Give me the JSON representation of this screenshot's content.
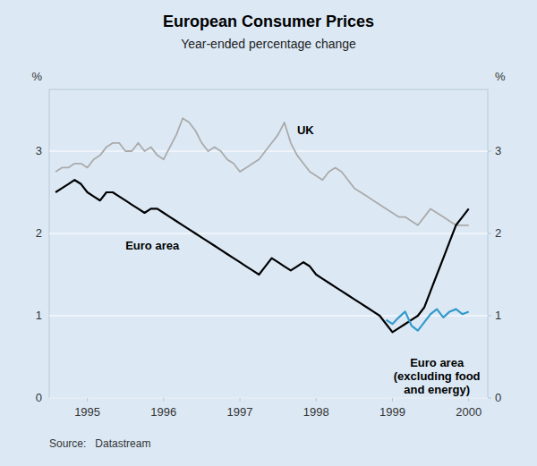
{
  "chart_data": {
    "type": "line",
    "title": "European Consumer Prices",
    "subtitle": "Year-ended percentage change",
    "y_label": "%",
    "y2_label": "%",
    "source": "Source:   Datastream",
    "xlim": [
      1994.5,
      2000.25
    ],
    "xticks": [
      1995,
      1996,
      1997,
      1998,
      1999,
      2000
    ],
    "ylim": [
      0,
      3.75
    ],
    "yticks": [
      0,
      1,
      2,
      3
    ],
    "y2lim": [
      0,
      3.75
    ],
    "y2ticks": [
      0,
      1,
      2,
      3
    ],
    "grid": true,
    "series": [
      {
        "name": "UK",
        "color": "#aaaaaa",
        "x": [
          1994.583,
          1994.667,
          1994.75,
          1994.833,
          1994.917,
          1995.0,
          1995.083,
          1995.167,
          1995.25,
          1995.333,
          1995.417,
          1995.5,
          1995.583,
          1995.667,
          1995.75,
          1995.833,
          1995.917,
          1996.0,
          1996.083,
          1996.167,
          1996.25,
          1996.333,
          1996.417,
          1996.5,
          1996.583,
          1996.667,
          1996.75,
          1996.833,
          1996.917,
          1997.0,
          1997.083,
          1997.167,
          1997.25,
          1997.333,
          1997.417,
          1997.5,
          1997.583,
          1997.667,
          1997.75,
          1997.833,
          1997.917,
          1998.0,
          1998.083,
          1998.167,
          1998.25,
          1998.333,
          1998.417,
          1998.5,
          1998.583,
          1998.667,
          1998.75,
          1998.833,
          1998.917,
          1999.0,
          1999.083,
          1999.167,
          1999.25,
          1999.333,
          1999.417,
          1999.5,
          1999.583,
          1999.667,
          1999.75,
          1999.833,
          1999.917,
          2000.0
        ],
        "values": [
          2.75,
          2.8,
          2.8,
          2.85,
          2.85,
          2.8,
          2.9,
          2.95,
          3.05,
          3.1,
          3.1,
          3.0,
          3.0,
          3.1,
          3.0,
          3.05,
          2.95,
          2.9,
          3.05,
          3.2,
          3.4,
          3.35,
          3.25,
          3.1,
          3.0,
          3.05,
          3.0,
          2.9,
          2.85,
          2.75,
          2.8,
          2.85,
          2.9,
          3.0,
          3.1,
          3.2,
          3.35,
          3.1,
          2.95,
          2.85,
          2.75,
          2.7,
          2.65,
          2.75,
          2.8,
          2.75,
          2.65,
          2.55,
          2.5,
          2.45,
          2.4,
          2.35,
          2.3,
          2.25,
          2.2,
          2.2,
          2.15,
          2.1,
          2.2,
          2.3,
          2.25,
          2.2,
          2.15,
          2.1,
          2.1,
          2.1
        ]
      },
      {
        "name": "Euro area",
        "color": "#000000",
        "x": [
          1994.583,
          1994.667,
          1994.75,
          1994.833,
          1994.917,
          1995.0,
          1995.083,
          1995.167,
          1995.25,
          1995.333,
          1995.417,
          1995.5,
          1995.583,
          1995.667,
          1995.75,
          1995.833,
          1995.917,
          1996.0,
          1996.083,
          1996.167,
          1996.25,
          1996.333,
          1996.417,
          1996.5,
          1996.583,
          1996.667,
          1996.75,
          1996.833,
          1996.917,
          1997.0,
          1997.083,
          1997.167,
          1997.25,
          1997.333,
          1997.417,
          1997.5,
          1997.583,
          1997.667,
          1997.75,
          1997.833,
          1997.917,
          1998.0,
          1998.083,
          1998.167,
          1998.25,
          1998.333,
          1998.417,
          1998.5,
          1998.583,
          1998.667,
          1998.75,
          1998.833,
          1998.917,
          1999.0,
          1999.083,
          1999.167,
          1999.25,
          1999.333,
          1999.417,
          1999.5,
          1999.583,
          1999.667,
          1999.75,
          1999.833,
          1999.917,
          2000.0
        ],
        "values": [
          2.5,
          2.55,
          2.6,
          2.65,
          2.6,
          2.5,
          2.45,
          2.4,
          2.5,
          2.5,
          2.45,
          2.4,
          2.35,
          2.3,
          2.25,
          2.3,
          2.3,
          2.25,
          2.2,
          2.15,
          2.1,
          2.05,
          2.0,
          1.95,
          1.9,
          1.85,
          1.8,
          1.75,
          1.7,
          1.65,
          1.6,
          1.55,
          1.5,
          1.6,
          1.7,
          1.65,
          1.6,
          1.55,
          1.6,
          1.65,
          1.6,
          1.5,
          1.45,
          1.4,
          1.35,
          1.3,
          1.25,
          1.2,
          1.15,
          1.1,
          1.05,
          1.0,
          0.9,
          0.8,
          0.85,
          0.9,
          0.95,
          1.0,
          1.1,
          1.3,
          1.5,
          1.7,
          1.9,
          2.1,
          2.2,
          2.3
        ]
      },
      {
        "name": "Euro area\n(excluding food\nand energy)",
        "color": "#3399cc",
        "x": [
          1998.917,
          1999.0,
          1999.083,
          1999.167,
          1999.25,
          1999.333,
          1999.417,
          1999.5,
          1999.583,
          1999.667,
          1999.75,
          1999.833,
          1999.917,
          2000.0
        ],
        "values": [
          0.95,
          0.9,
          0.98,
          1.05,
          0.88,
          0.82,
          0.92,
          1.02,
          1.08,
          0.98,
          1.05,
          1.08,
          1.02,
          1.05
        ]
      }
    ]
  }
}
